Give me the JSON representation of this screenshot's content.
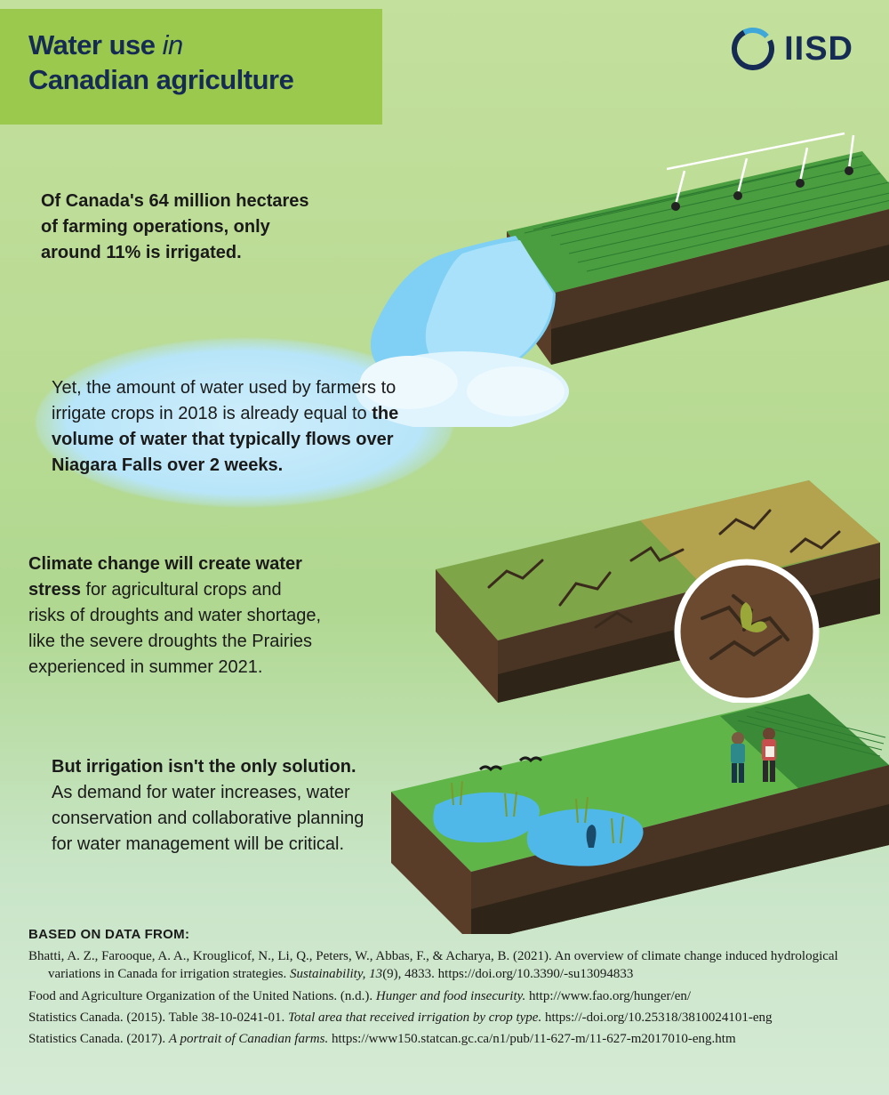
{
  "title_pre": "Water use ",
  "title_em": "in",
  "title_post": "Canadian agriculture",
  "logo": {
    "text": "IISD",
    "outer_color": "#162b54",
    "inner_color": "#3fa8d8"
  },
  "p1": "Of Canada's 64 million hectares of farming operations, only around 11% is irrigated.",
  "p2_pre": "Yet, the amount of water used by farmers to irrigate crops in 2018 is already equal to ",
  "p2_bold": "the volume of water that typically flows over Niagara Falls over 2 weeks.",
  "p3_b1": "Climate change will create water stress",
  "p3_rest": " for agricultural crops and risks of droughts and water shortage, like the severe droughts the Prairies experienced in summer 2021.",
  "p4_b1": "But irrigation isn't the only solution.",
  "p4_rest": " As demand for water increases, water conservation and collaborative planning for water management will be critical.",
  "sources_head": "BASED ON DATA FROM:",
  "sources": [
    {
      "pre": "Bhatti, A. Z., Farooque, A. A., Krouglicof, N., Li, Q., Peters, W., Abbas, F., & Acharya, B. (2021). An overview of climate change induced hydrological variations in Canada for irrigation strategies. ",
      "em": "Sustainability, 13",
      "post": "(9), 4833. https://doi.org/10.3390/-su13094833"
    },
    {
      "pre": "Food and Agriculture Organization of the United Nations. (n.d.). ",
      "em": "Hunger and food insecurity.",
      "post": " http://www.fao.org/hunger/en/"
    },
    {
      "pre": "Statistics Canada. (2015). Table 38-10-0241-01. ",
      "em": "Total area that received irrigation by crop type.",
      "post": " https://-doi.org/10.25318/3810024101-eng"
    },
    {
      "pre": "Statistics Canada. (2017). ",
      "em": "A portrait of Canadian farms.",
      "post": " https://www150.statcan.gc.ca/n1/pub/11-627-m/11-627-m2017010-eng.htm"
    }
  ],
  "colors": {
    "bg_top": "#c3e09c",
    "bg_bot": "#d5ead4",
    "title_bg": "#9bc94e",
    "title_text": "#162b54",
    "body_text": "#1a1a1a",
    "water_light": "#b8e5f9",
    "water_dark": "#4fb8e8",
    "grass_top": "#5fb548",
    "grass_dark": "#3a8a38",
    "soil_top": "#6b4a2f",
    "soil_dark": "#3a2a1c",
    "dry_grass": "#b3a24e",
    "crack": "#4a3524"
  }
}
